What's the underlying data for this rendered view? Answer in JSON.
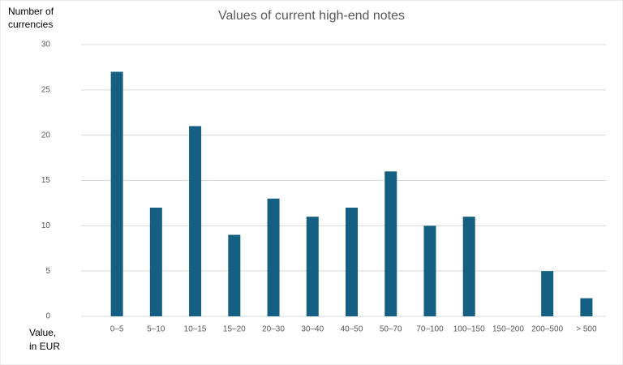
{
  "chart_data": {
    "type": "bar",
    "title": "Values of current high-end notes",
    "y_label": [
      "Number of",
      "currencies"
    ],
    "x_label": [
      "Value,",
      "in EUR"
    ],
    "categories": [
      "0–5",
      "5–10",
      "10–15",
      "15–20",
      "20–30",
      "30–40",
      "40–50",
      "50–70",
      "70–100",
      "100–150",
      "150–200",
      "200–500",
      "> 500"
    ],
    "values": [
      27,
      12,
      21,
      9,
      13,
      11,
      12,
      16,
      10,
      11,
      0,
      5,
      2
    ],
    "color": "#156082",
    "ylim": [
      0,
      30
    ],
    "yticks": [
      0,
      5,
      10,
      15,
      20,
      25,
      30
    ],
    "grid": true
  }
}
